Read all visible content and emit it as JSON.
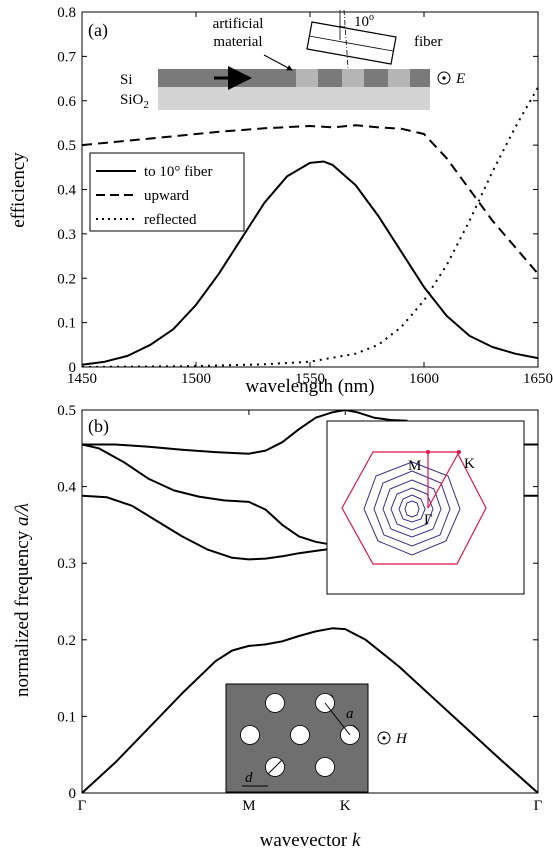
{
  "chart_data": [
    {
      "type": "line",
      "panel_label": "(a)",
      "xlabel": "wavelength (nm)",
      "ylabel": "efficiency",
      "xlim": [
        1450,
        1650
      ],
      "ylim": [
        0,
        0.8
      ],
      "xticks": [
        1450,
        1500,
        1550,
        1600,
        1650
      ],
      "yticks": [
        0,
        0.1,
        0.2,
        0.3,
        0.4,
        0.5,
        0.6,
        0.7,
        0.8
      ],
      "grid": false,
      "legend_position": "center-left",
      "series": [
        {
          "name": "to 10° fiber",
          "style": "solid",
          "x": [
            1450,
            1460,
            1470,
            1480,
            1490,
            1500,
            1510,
            1520,
            1530,
            1540,
            1550,
            1556,
            1560,
            1570,
            1580,
            1590,
            1600,
            1610,
            1620,
            1630,
            1640,
            1650
          ],
          "y": [
            0.005,
            0.012,
            0.025,
            0.05,
            0.085,
            0.14,
            0.21,
            0.29,
            0.37,
            0.43,
            0.46,
            0.463,
            0.455,
            0.41,
            0.34,
            0.26,
            0.18,
            0.115,
            0.07,
            0.045,
            0.03,
            0.02
          ]
        },
        {
          "name": "upward",
          "style": "dashed",
          "x": [
            1450,
            1470,
            1490,
            1510,
            1530,
            1550,
            1560,
            1570,
            1580,
            1590,
            1600,
            1610,
            1620,
            1630,
            1640,
            1650
          ],
          "y": [
            0.5,
            0.51,
            0.52,
            0.53,
            0.538,
            0.543,
            0.54,
            0.545,
            0.54,
            0.537,
            0.525,
            0.47,
            0.4,
            0.33,
            0.27,
            0.21
          ]
        },
        {
          "name": "reflected",
          "style": "dotted",
          "x": [
            1450,
            1500,
            1530,
            1550,
            1570,
            1580,
            1590,
            1600,
            1610,
            1620,
            1630,
            1640,
            1650
          ],
          "y": [
            0.0,
            0.002,
            0.006,
            0.012,
            0.03,
            0.05,
            0.09,
            0.15,
            0.23,
            0.33,
            0.44,
            0.54,
            0.63
          ]
        }
      ],
      "inset": {
        "labels": [
          "artificial material",
          "fiber",
          "Si",
          "SiO2",
          "E",
          "10°"
        ],
        "artificial_label_line1": "artificial",
        "artificial_label_line2": "material",
        "fiber_label": "fiber",
        "si_label": "Si",
        "sio2_label": "SiO",
        "sio2_sub": "2",
        "field_label": "E",
        "angle_label": "10",
        "angle_sup": "o"
      }
    },
    {
      "type": "line",
      "panel_label": "(b)",
      "xlabel": "wavevector k",
      "xlabel_text": "wavevector ",
      "xlabel_italic": "k",
      "ylabel": "normalized frequency a/λ",
      "ylabel_text": "normalized frequency ",
      "ylabel_italic": "a/λ",
      "xtick_labels": [
        "Γ",
        "M",
        "K",
        "Γ"
      ],
      "xtick_positions": [
        0,
        1,
        1.577,
        2.732
      ],
      "xlim": [
        0,
        2.732
      ],
      "ylim": [
        0,
        0.5
      ],
      "yticks": [
        0,
        0.1,
        0.2,
        0.3,
        0.4,
        0.5
      ],
      "grid": false,
      "series": [
        {
          "x": [
            0,
            0.2,
            0.4,
            0.6,
            0.8,
            0.9,
            1.0,
            1.1,
            1.2,
            1.3,
            1.4,
            1.5,
            1.577,
            1.7,
            1.9,
            2.1,
            2.3,
            2.5,
            2.732
          ],
          "y": [
            0,
            0.04,
            0.085,
            0.13,
            0.172,
            0.186,
            0.192,
            0.194,
            0.198,
            0.205,
            0.211,
            0.215,
            0.214,
            0.2,
            0.165,
            0.125,
            0.085,
            0.045,
            0
          ]
        },
        {
          "x": [
            0,
            0.15,
            0.3,
            0.45,
            0.6,
            0.75,
            0.9,
            1.0,
            1.1,
            1.2,
            1.3,
            1.4,
            1.5,
            1.577
          ],
          "y": [
            0.388,
            0.386,
            0.375,
            0.355,
            0.335,
            0.318,
            0.307,
            0.305,
            0.306,
            0.309,
            0.313,
            0.316,
            0.319,
            0.32
          ]
        },
        {
          "x": [
            0,
            0.1,
            0.25,
            0.4,
            0.55,
            0.7,
            0.85,
            1.0,
            1.1,
            1.2,
            1.3,
            1.4,
            1.5,
            1.577
          ],
          "y": [
            0.455,
            0.45,
            0.432,
            0.41,
            0.395,
            0.387,
            0.382,
            0.38,
            0.37,
            0.35,
            0.335,
            0.328,
            0.324,
            0.325
          ]
        },
        {
          "x": [
            0,
            0.2,
            0.4,
            0.6,
            0.8,
            1.0,
            1.1,
            1.2,
            1.3,
            1.4,
            1.5,
            1.577,
            1.65,
            1.75,
            1.85,
            1.95
          ],
          "y": [
            0.455,
            0.455,
            0.452,
            0.448,
            0.445,
            0.443,
            0.447,
            0.458,
            0.475,
            0.49,
            0.497,
            0.5,
            0.497,
            0.49,
            0.487,
            0.486
          ]
        },
        {
          "x": [
            2.6,
            2.732
          ],
          "y": [
            0.455,
            0.455
          ]
        },
        {
          "x": [
            2.6,
            2.732
          ],
          "y": [
            0.388,
            0.388
          ]
        }
      ],
      "inset_brillouin": {
        "vertex_labels": [
          "M",
          "K",
          "Γ"
        ]
      },
      "inset_lattice": {
        "labels": [
          "a",
          "d",
          "H"
        ]
      }
    }
  ]
}
